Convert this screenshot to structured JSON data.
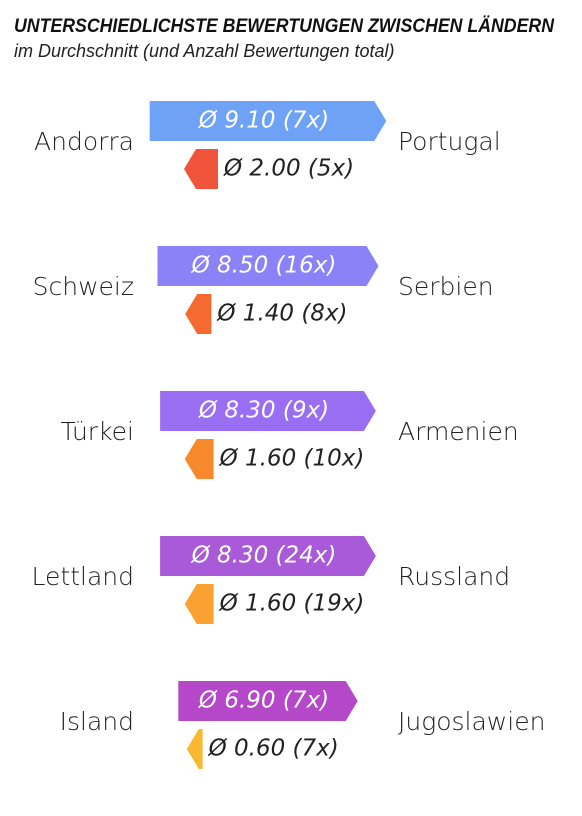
{
  "chart_data": {
    "type": "arrow-pair",
    "title": "UNTERSCHIEDLICHSTE BEWERTUNGEN ZWISCHEN LÄNDERN",
    "subtitle": "im Durchschnitt (und Anzahl Bewertungen total)",
    "categories": [
      "Andorra",
      "Schweiz",
      "Türkei",
      "Lettland",
      "Island"
    ],
    "targets": [
      "Portugal",
      "Serbien",
      "Armenien",
      "Russland",
      "Jugoslawien"
    ],
    "series": [
      {
        "direction": "right",
        "colors": [
          "#6ea2f6",
          "#8a82f6",
          "#9a6ef2",
          "#a95ad8",
          "#b548c8"
        ],
        "values": [
          9.1,
          8.5,
          8.3,
          8.3,
          6.9
        ],
        "value_labels": [
          "Ø 9.10 (7x)",
          "Ø 8.50 (16x)",
          "Ø 8.30 (9x)",
          "Ø 8.30 (24x)",
          "Ø 6.90 (7x)"
        ]
      },
      {
        "direction": "left",
        "colors": [
          "#f0553c",
          "#f46a30",
          "#f7882c",
          "#faa132",
          "#f9b832"
        ],
        "values": [
          2.0,
          1.4,
          1.6,
          1.6,
          0.6
        ],
        "value_labels": [
          "Ø 2.00 (5x)",
          "Ø 1.40 (8x)",
          "Ø 1.60 (10x)",
          "Ø 1.60 (19x)",
          "Ø 0.60 (7x)"
        ]
      }
    ]
  }
}
